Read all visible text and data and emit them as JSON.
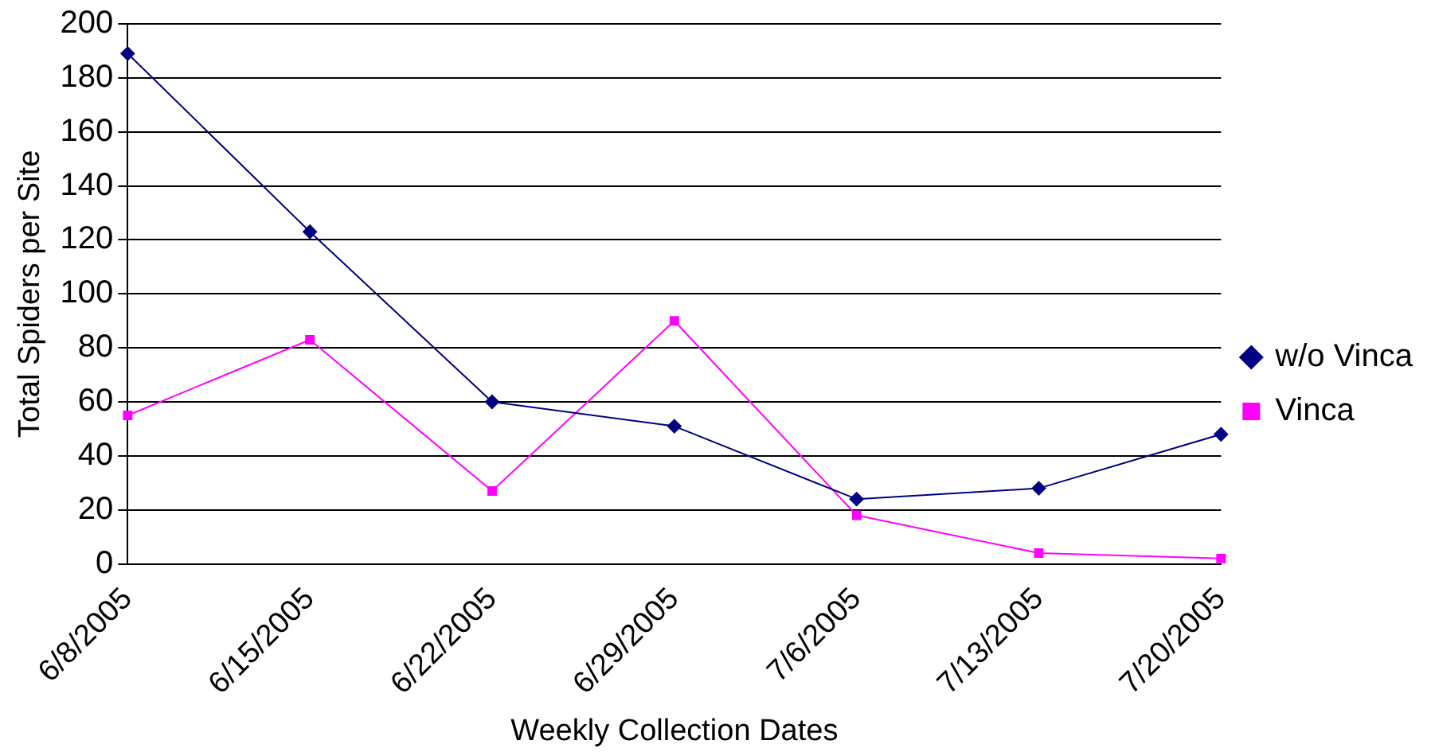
{
  "chart_data": {
    "type": "line",
    "xlabel": "Weekly Collection Dates",
    "ylabel": "Total Spiders per Site",
    "categories": [
      "6/8/2005",
      "6/15/2005",
      "6/22/2005",
      "6/29/2005",
      "7/6/2005",
      "7/13/2005",
      "7/20/2005"
    ],
    "series": [
      {
        "name": "w/o Vinca",
        "color": "#000080",
        "marker": "diamond",
        "values": [
          189,
          123,
          60,
          51,
          24,
          28,
          48
        ]
      },
      {
        "name": "Vinca",
        "color": "#ff00ff",
        "marker": "square",
        "values": [
          55,
          83,
          27,
          90,
          18,
          4,
          2
        ]
      }
    ],
    "ylim": [
      0,
      200
    ],
    "yticks": [
      0,
      20,
      40,
      60,
      80,
      100,
      120,
      140,
      160,
      180,
      200
    ],
    "grid": "y",
    "legend": "right",
    "line_style": "solid"
  }
}
